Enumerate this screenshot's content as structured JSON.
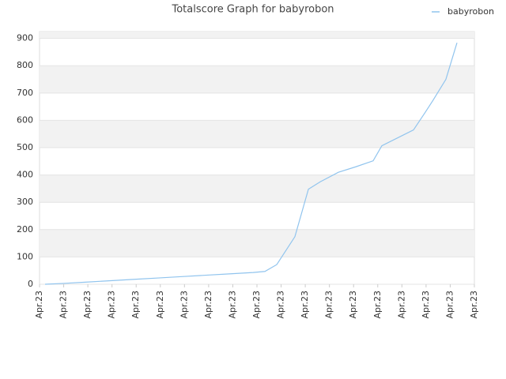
{
  "chart_data": {
    "type": "line",
    "title": "Totalscore Graph for babyrobon",
    "series": [
      {
        "name": "babyrobon",
        "color": "#90c4ee",
        "x": [
          0.23,
          0.98,
          1.96,
          2.95,
          3.93,
          4.91,
          5.89,
          6.87,
          7.85,
          8.84,
          9.33,
          9.82,
          10.57,
          11.13,
          11.62,
          12.37,
          13.09,
          13.81,
          14.17,
          15.48,
          15.97,
          16.3,
          16.82,
          17.28
        ],
        "values": [
          0,
          3,
          8,
          13,
          18,
          23,
          28,
          33,
          38,
          43,
          47,
          72,
          174,
          348,
          375,
          410,
          430,
          452,
          507,
          565,
          630,
          675,
          750,
          884
        ]
      }
    ],
    "xlim": [
      0,
      18
    ],
    "xticks": [
      {
        "value": 0,
        "label": "Apr.23"
      },
      {
        "value": 1,
        "label": "Apr.23"
      },
      {
        "value": 2,
        "label": "Apr.23"
      },
      {
        "value": 3,
        "label": "Apr.23"
      },
      {
        "value": 4,
        "label": "Apr.23"
      },
      {
        "value": 5,
        "label": "Apr.23"
      },
      {
        "value": 6,
        "label": "Apr.23"
      },
      {
        "value": 7,
        "label": "Apr.23"
      },
      {
        "value": 8,
        "label": "Apr.23"
      },
      {
        "value": 9,
        "label": "Apr.23"
      },
      {
        "value": 10,
        "label": "Apr.23"
      },
      {
        "value": 11,
        "label": "Apr.23"
      },
      {
        "value": 12,
        "label": "Apr.23"
      },
      {
        "value": 13,
        "label": "Apr.23"
      },
      {
        "value": 14,
        "label": "Apr.23"
      },
      {
        "value": 15,
        "label": "Apr.23"
      },
      {
        "value": 16,
        "label": "Apr.23"
      },
      {
        "value": 17,
        "label": "Apr.23"
      },
      {
        "value": 18,
        "label": "Apr.23"
      }
    ],
    "ylim": [
      0,
      925
    ],
    "yticks": [
      0,
      100,
      200,
      300,
      400,
      500,
      600,
      700,
      800,
      900
    ],
    "grid": true,
    "legend": "top-right"
  }
}
